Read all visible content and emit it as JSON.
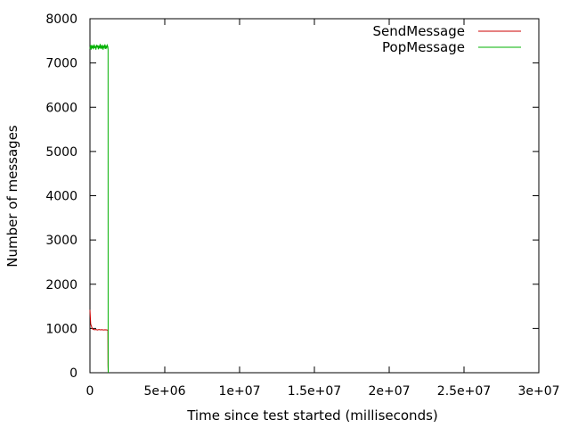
{
  "chart_data": {
    "type": "line",
    "title": "",
    "xlabel": "Time since test started (milliseconds)",
    "ylabel": "Number of messages",
    "xlim": [
      0,
      30000000
    ],
    "ylim": [
      0,
      8000
    ],
    "x_ticks": [
      {
        "value": 0,
        "label": "0"
      },
      {
        "value": 5000000,
        "label": "5e+06"
      },
      {
        "value": 10000000,
        "label": "1e+07"
      },
      {
        "value": 15000000,
        "label": "1.5e+07"
      },
      {
        "value": 20000000,
        "label": "2e+07"
      },
      {
        "value": 25000000,
        "label": "2.5e+07"
      },
      {
        "value": 30000000,
        "label": "3e+07"
      }
    ],
    "y_ticks": [
      {
        "value": 0,
        "label": "0"
      },
      {
        "value": 1000,
        "label": "1000"
      },
      {
        "value": 2000,
        "label": "2000"
      },
      {
        "value": 3000,
        "label": "3000"
      },
      {
        "value": 4000,
        "label": "4000"
      },
      {
        "value": 5000,
        "label": "5000"
      },
      {
        "value": 6000,
        "label": "6000"
      },
      {
        "value": 7000,
        "label": "7000"
      },
      {
        "value": 8000,
        "label": "8000"
      }
    ],
    "grid": false,
    "legend_position": "top-right",
    "series": [
      {
        "name": "SendMessage",
        "color": "#cc0000",
        "points": [
          [
            0,
            1420
          ],
          [
            50000,
            1100
          ],
          [
            100000,
            1050
          ],
          [
            150000,
            1000
          ],
          [
            200000,
            980
          ],
          [
            300000,
            970
          ],
          [
            400000,
            975
          ],
          [
            500000,
            965
          ],
          [
            600000,
            975
          ],
          [
            700000,
            968
          ],
          [
            800000,
            972
          ],
          [
            900000,
            966
          ],
          [
            1000000,
            970
          ],
          [
            1100000,
            968
          ],
          [
            1150000,
            965
          ],
          [
            1200000,
            960
          ],
          [
            1210000,
            150
          ],
          [
            1220000,
            0
          ]
        ]
      },
      {
        "name": "PopMessage",
        "color": "#00b000",
        "points": [
          [
            0,
            7320
          ],
          [
            40000,
            7400
          ],
          [
            80000,
            7300
          ],
          [
            120000,
            7410
          ],
          [
            160000,
            7330
          ],
          [
            200000,
            7390
          ],
          [
            240000,
            7310
          ],
          [
            280000,
            7420
          ],
          [
            320000,
            7340
          ],
          [
            360000,
            7380
          ],
          [
            400000,
            7300
          ],
          [
            440000,
            7410
          ],
          [
            480000,
            7350
          ],
          [
            520000,
            7400
          ],
          [
            560000,
            7310
          ],
          [
            600000,
            7390
          ],
          [
            640000,
            7330
          ],
          [
            680000,
            7430
          ],
          [
            720000,
            7320
          ],
          [
            760000,
            7380
          ],
          [
            800000,
            7340
          ],
          [
            840000,
            7410
          ],
          [
            880000,
            7300
          ],
          [
            920000,
            7390
          ],
          [
            960000,
            7350
          ],
          [
            1000000,
            7420
          ],
          [
            1040000,
            7320
          ],
          [
            1080000,
            7380
          ],
          [
            1120000,
            7340
          ],
          [
            1160000,
            7400
          ],
          [
            1200000,
            7360
          ],
          [
            1210000,
            7300
          ],
          [
            1215000,
            180
          ],
          [
            1225000,
            0
          ]
        ]
      }
    ]
  }
}
